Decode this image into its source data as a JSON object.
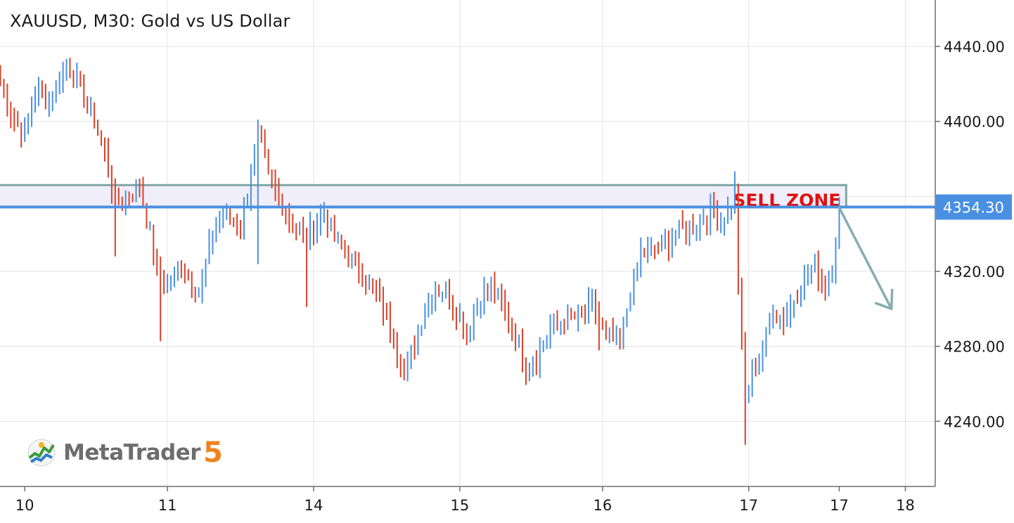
{
  "chart_title": "XAUUSD, M30: Gold vs US Dollar",
  "branding": {
    "name": "MetaTrader",
    "version": "5"
  },
  "colors": {
    "bull": "#4a90e2",
    "bear": "#d9412a",
    "grid": "#e3e3e3",
    "zone_border": "#7fa8a4",
    "zone_fill": "#f0eefa",
    "price_line": "#4a90e2",
    "price_tag_bg": "#4a90e2",
    "sell_label": "#e01010",
    "arrow": "#86aeb0",
    "logo_five": "#f0831f"
  },
  "chart_data": {
    "type": "candlestick",
    "title": "XAUUSD, M30: Gold vs US Dollar",
    "symbol": "XAUUSD",
    "timeframe": "M30",
    "ylim": [
      4200,
      4460
    ],
    "y_ticks": [
      "4440.00",
      "4400.00",
      "4320.00",
      "4280.00",
      "4240.00"
    ],
    "x_ticks": [
      {
        "label": "10",
        "bar": 7
      },
      {
        "label": "11",
        "bar": 48
      },
      {
        "label": "14",
        "bar": 90
      },
      {
        "label": "15",
        "bar": 132
      },
      {
        "label": "16",
        "bar": 173
      },
      {
        "label": "17",
        "bar": 215
      },
      {
        "label": "17",
        "bar": 241
      },
      {
        "label": "18",
        "bar": 260
      }
    ],
    "sell_zone": {
      "label": "SELL ZONE",
      "top": 4366,
      "bottom": 4354.3,
      "bar_end": 243
    },
    "current_price": {
      "value": 4354.3,
      "label": "4354.30"
    },
    "forecast_arrow": {
      "from_bar": 241,
      "from_price": 4354,
      "to_bar": 256,
      "to_price": 4300
    },
    "grid": true,
    "waypoints": [
      [
        0,
        4420
      ],
      [
        3,
        4405
      ],
      [
        7,
        4392
      ],
      [
        10,
        4418
      ],
      [
        14,
        4410
      ],
      [
        19,
        4432
      ],
      [
        23,
        4418
      ],
      [
        27,
        4400
      ],
      [
        30,
        4382
      ],
      [
        33,
        4358
      ],
      [
        36,
        4360
      ],
      [
        40,
        4365
      ],
      [
        43,
        4340
      ],
      [
        45,
        4318
      ],
      [
        48,
        4312
      ],
      [
        52,
        4325
      ],
      [
        57,
        4308
      ],
      [
        61,
        4340
      ],
      [
        64,
        4350
      ],
      [
        69,
        4342
      ],
      [
        74,
        4395
      ],
      [
        77,
        4370
      ],
      [
        84,
        4345
      ],
      [
        88,
        4338
      ],
      [
        93,
        4352
      ],
      [
        96,
        4338
      ],
      [
        101,
        4325
      ],
      [
        104,
        4320
      ],
      [
        108,
        4308
      ],
      [
        112,
        4290
      ],
      [
        116,
        4268
      ],
      [
        119,
        4280
      ],
      [
        122,
        4300
      ],
      [
        125,
        4312
      ],
      [
        129,
        4306
      ],
      [
        131,
        4300
      ],
      [
        134,
        4288
      ],
      [
        138,
        4306
      ],
      [
        141,
        4312
      ],
      [
        144,
        4302
      ],
      [
        148,
        4284
      ],
      [
        151,
        4268
      ],
      [
        155,
        4278
      ],
      [
        158,
        4290
      ],
      [
        162,
        4294
      ],
      [
        166,
        4296
      ],
      [
        170,
        4302
      ],
      [
        174,
        4284
      ],
      [
        178,
        4282
      ],
      [
        181,
        4308
      ],
      [
        184,
        4330
      ],
      [
        188,
        4330
      ],
      [
        192,
        4336
      ],
      [
        195,
        4342
      ],
      [
        199,
        4344
      ],
      [
        204,
        4352
      ],
      [
        207,
        4348
      ],
      [
        211,
        4358
      ],
      [
        212,
        4312
      ],
      [
        214,
        4250
      ],
      [
        216,
        4266
      ],
      [
        219,
        4278
      ],
      [
        222,
        4300
      ],
      [
        225,
        4294
      ],
      [
        228,
        4305
      ],
      [
        231,
        4316
      ],
      [
        234,
        4324
      ],
      [
        237,
        4310
      ],
      [
        239,
        4325
      ],
      [
        241,
        4354
      ]
    ]
  }
}
